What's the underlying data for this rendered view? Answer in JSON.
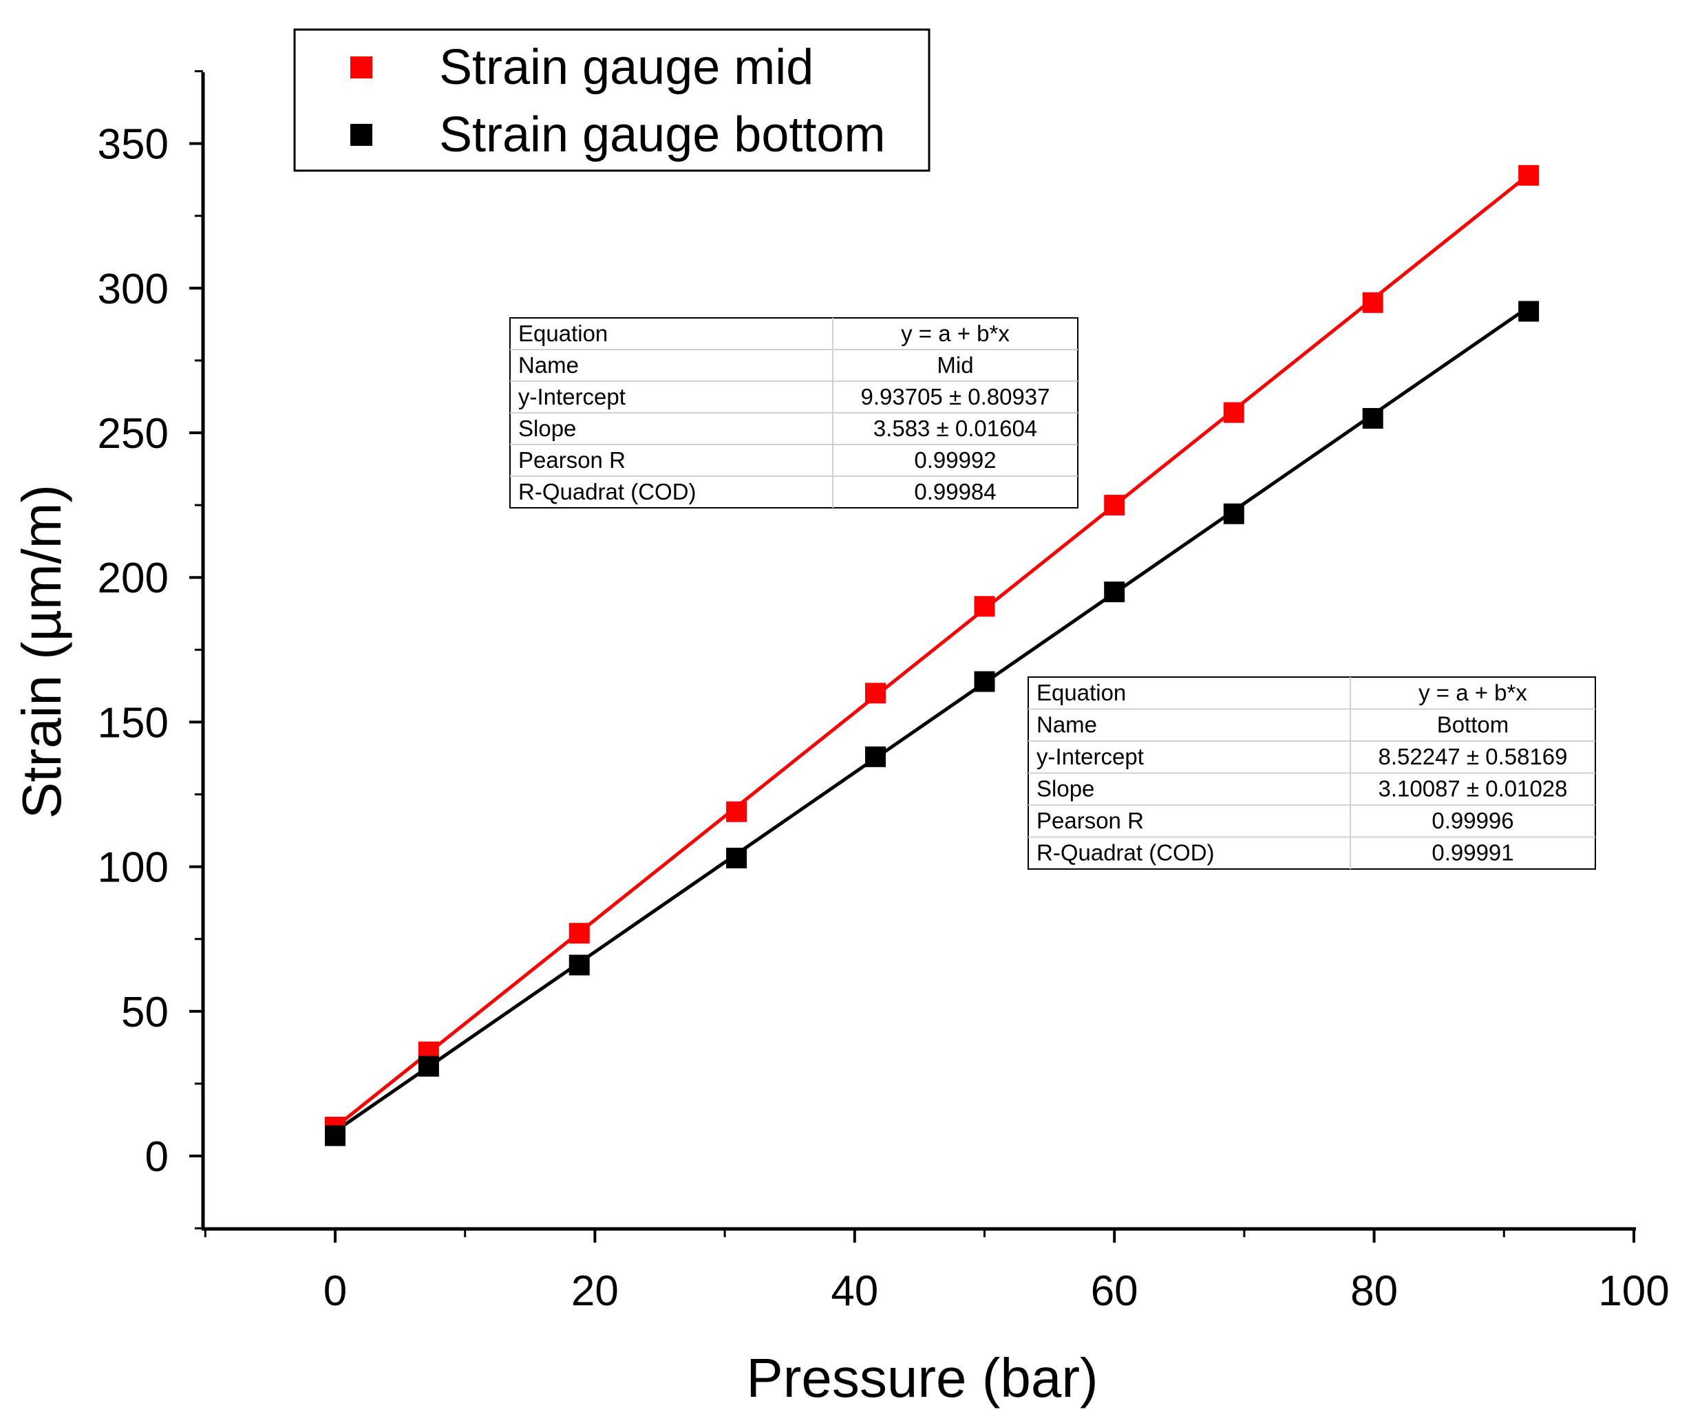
{
  "chart_data": {
    "type": "line",
    "xlabel": "Pressure (bar)",
    "ylabel": "Strain (µm/m)",
    "xlim": [
      -10,
      100
    ],
    "ylim": [
      -25,
      375
    ],
    "xticks": [
      0,
      20,
      40,
      60,
      80,
      100
    ],
    "yticks": [
      0,
      50,
      100,
      150,
      200,
      250,
      300,
      350
    ],
    "xtick_labels": [
      "0",
      "20",
      "40",
      "60",
      "80",
      "100"
    ],
    "ytick_labels": [
      "0",
      "50",
      "100",
      "150",
      "200",
      "250",
      "300",
      "350"
    ],
    "grid": false,
    "legend_position": "top-left",
    "series": [
      {
        "name": "Strain gauge mid",
        "color": "#ff0000",
        "marker": "square",
        "x": [
          0,
          7.2,
          18.8,
          30.9,
          41.6,
          50.0,
          60.0,
          69.2,
          79.9,
          91.9
        ],
        "y": [
          10,
          36,
          77,
          119,
          160,
          190,
          225,
          257,
          295,
          339
        ],
        "fit": {
          "intercept": 9.93705,
          "slope": 3.583
        }
      },
      {
        "name": "Strain gauge bottom",
        "color": "#000000",
        "marker": "square",
        "x": [
          0,
          7.2,
          18.8,
          30.9,
          41.6,
          50.0,
          60.0,
          69.2,
          79.9,
          91.9
        ],
        "y": [
          7,
          31,
          66,
          103,
          138,
          164,
          195,
          222,
          255,
          292
        ],
        "fit": {
          "intercept": 8.52247,
          "slope": 3.10087
        }
      }
    ],
    "fit_tables": [
      {
        "rows": [
          [
            "Equation",
            "y = a + b*x"
          ],
          [
            "Name",
            "Mid"
          ],
          [
            "y-Intercept",
            "9.93705 ± 0.80937"
          ],
          [
            "Slope",
            "3.583 ± 0.01604"
          ],
          [
            "Pearson R",
            "0.99992"
          ],
          [
            "R-Quadrat (COD)",
            "0.99984"
          ]
        ]
      },
      {
        "rows": [
          [
            "Equation",
            "y = a + b*x"
          ],
          [
            "Name",
            "Bottom"
          ],
          [
            "y-Intercept",
            "8.52247 ± 0.58169"
          ],
          [
            "Slope",
            "3.10087 ± 0.01028"
          ],
          [
            "Pearson R",
            "0.99996"
          ],
          [
            "R-Quadrat (COD)",
            "0.99991"
          ]
        ]
      }
    ]
  }
}
